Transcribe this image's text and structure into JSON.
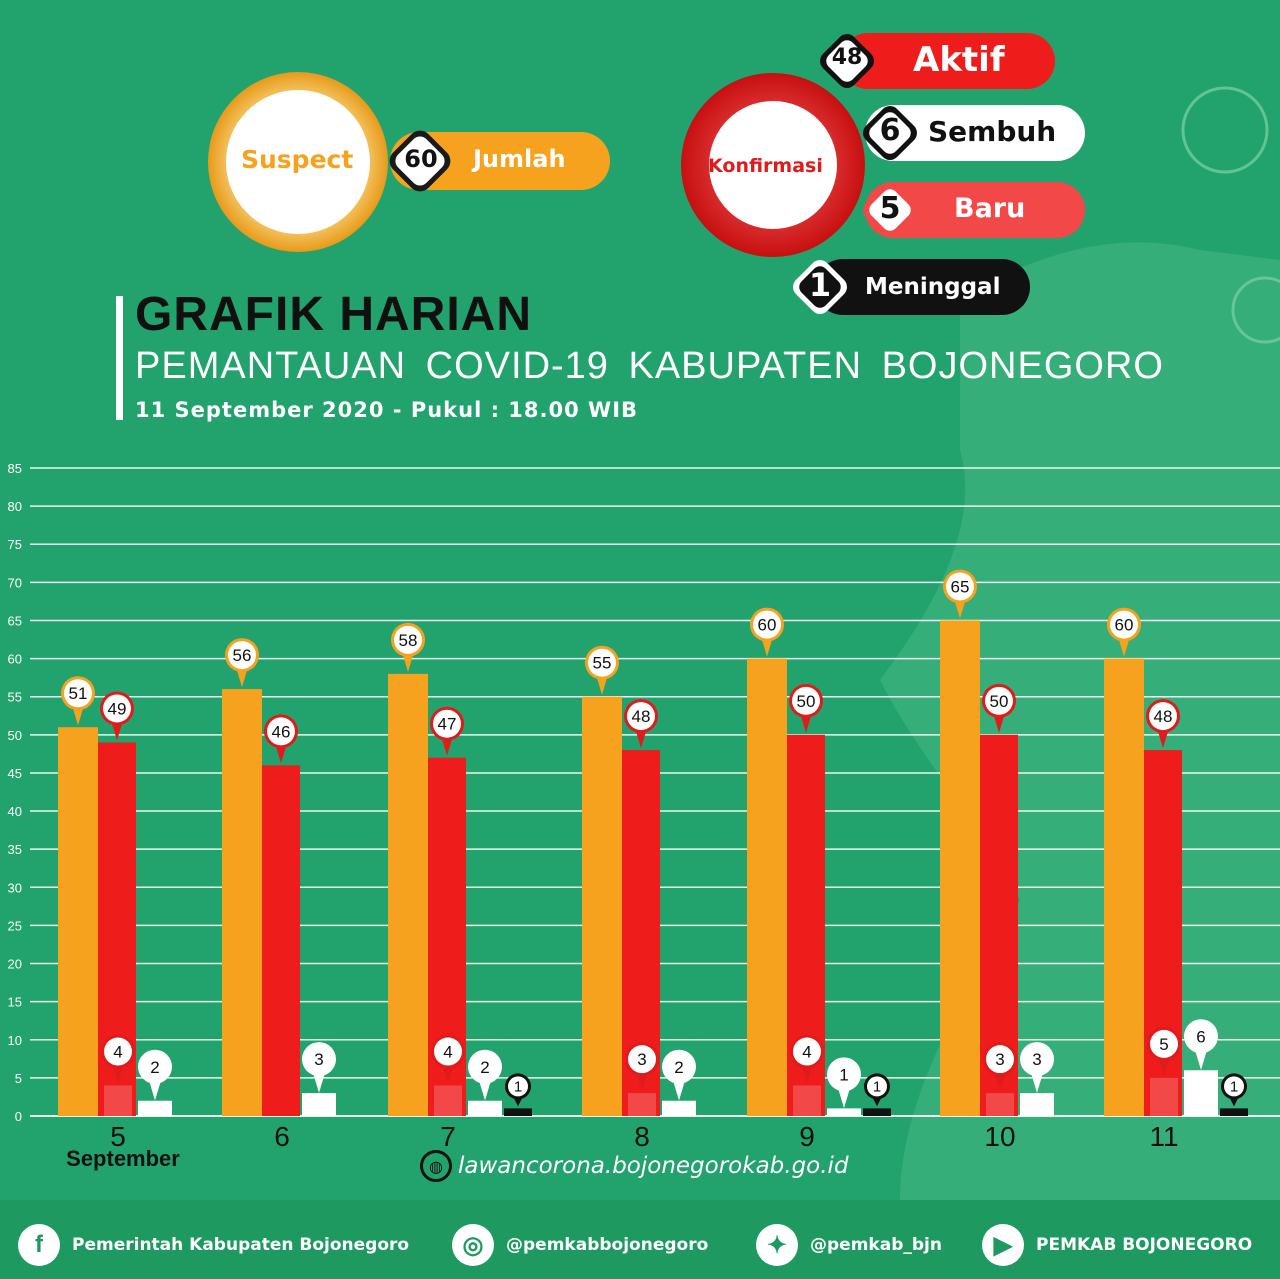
{
  "summary": {
    "suspect": {
      "label": "Suspect",
      "value": "60",
      "caption": "Jumlah"
    },
    "konfirmasi": {
      "label": "Konfirmasi",
      "aktif": {
        "value": "48",
        "label": "Aktif"
      },
      "sembuh": {
        "value": "6",
        "label": "Sembuh"
      },
      "baru": {
        "value": "5",
        "label": "Baru"
      },
      "meninggal": {
        "value": "1",
        "label": "Meninggal"
      }
    }
  },
  "header": {
    "title": "GRAFIK HARIAN",
    "subtitle": "PEMANTAUAN   COVID-19 KABUPATEN BOJONEGORO",
    "date": "11 September 2020 - Pukul : 18.00 WIB"
  },
  "colors": {
    "background": "#22a36d",
    "suspect": "#f6a21e",
    "aktif": "#ef1c1c",
    "baru": "#f24848",
    "sembuh": "#ffffff",
    "meninggal": "#111111"
  },
  "chart_data": {
    "type": "bar",
    "categories": [
      "5",
      "6",
      "7",
      "8",
      "9",
      "10",
      "11"
    ],
    "month_label": "September",
    "ylim": [
      0,
      85
    ],
    "yticks": [
      0,
      5,
      10,
      15,
      20,
      25,
      30,
      35,
      40,
      45,
      50,
      55,
      60,
      65,
      70,
      75,
      80,
      85
    ],
    "grid": true,
    "series": [
      {
        "key": "suspect",
        "values": [
          51,
          56,
          58,
          55,
          60,
          65,
          60
        ]
      },
      {
        "key": "aktif",
        "values": [
          49,
          46,
          47,
          48,
          50,
          50,
          48
        ]
      },
      {
        "key": "baru",
        "values": [
          4,
          null,
          4,
          3,
          4,
          3,
          5
        ]
      },
      {
        "key": "sembuh",
        "values": [
          2,
          3,
          2,
          2,
          1,
          3,
          6
        ]
      },
      {
        "key": "meninggal",
        "values": [
          null,
          null,
          1,
          null,
          1,
          null,
          1
        ]
      }
    ]
  },
  "footer": {
    "website": "lawancorona.bojonegorokab.go.id",
    "facebook": {
      "icon": "facebook-icon",
      "label": "Pemerintah Kabupaten Bojonegoro"
    },
    "instagram": {
      "icon": "instagram-icon",
      "label": "@pemkabbojonegoro"
    },
    "twitter": {
      "icon": "twitter-icon",
      "label": "@pemkab_bjn"
    },
    "youtube": {
      "icon": "youtube-icon",
      "label": "PEMKAB BOJONEGORO"
    }
  }
}
